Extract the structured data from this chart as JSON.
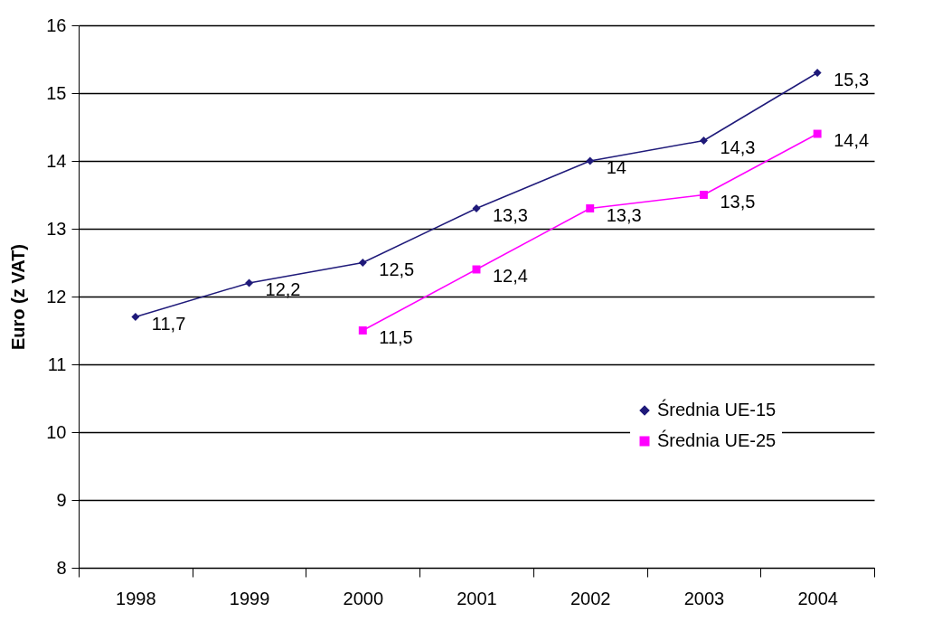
{
  "chart_data": {
    "type": "line",
    "ylabel": "Euro (z VAT)",
    "categories": [
      "1998",
      "1999",
      "2000",
      "2001",
      "2002",
      "2003",
      "2004"
    ],
    "series": [
      {
        "name": "Średnia UE-15",
        "color": "#1f1a7a",
        "marker": "diamond",
        "values": [
          11.7,
          12.2,
          12.5,
          13.3,
          14,
          14.3,
          15.3
        ],
        "value_labels": [
          "11,7",
          "12,2",
          "12,5",
          "13,3",
          "14",
          "14,3",
          "15,3"
        ]
      },
      {
        "name": "Średnia UE-25",
        "color": "#ff00ff",
        "marker": "square",
        "values": [
          null,
          null,
          11.5,
          12.4,
          13.3,
          13.5,
          14.4
        ],
        "value_labels": [
          null,
          null,
          "11,5",
          "12,4",
          "13,3",
          "13,5",
          "14,4"
        ]
      }
    ],
    "ylim": [
      8,
      16
    ],
    "yticks": [
      8,
      9,
      10,
      11,
      12,
      13,
      14,
      15,
      16
    ],
    "grid": "y",
    "legend": "bottom right"
  }
}
